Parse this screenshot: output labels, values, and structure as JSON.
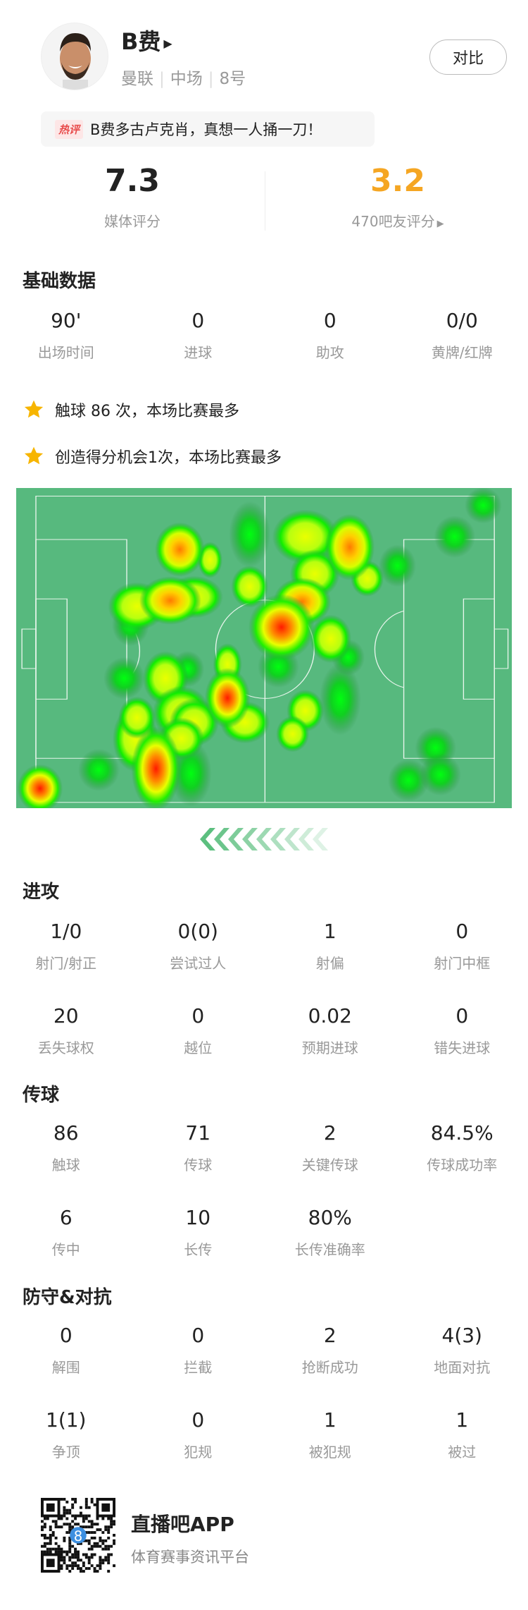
{
  "player": {
    "name": "B费",
    "team": "曼联",
    "position": "中场",
    "number": "8号",
    "compare_label": "对比"
  },
  "hot_comment": {
    "tag": "热评",
    "text": "B费多古卢克肖，真想一人捅一刀！"
  },
  "ratings": {
    "media": {
      "value": "7.3",
      "label": "媒体评分"
    },
    "fans": {
      "value": "3.2",
      "label": "470吧友评分",
      "color": "#f5a623"
    }
  },
  "basic": {
    "title": "基础数据",
    "items": [
      {
        "v": "90'",
        "l": "出场时间"
      },
      {
        "v": "0",
        "l": "进球"
      },
      {
        "v": "0",
        "l": "助攻"
      },
      {
        "v": "0/0",
        "l": "黄牌/红牌"
      }
    ]
  },
  "highlights": [
    "触球 86 次，本场比赛最多",
    "创造得分机会1次，本场比赛最多"
  ],
  "heatmap": {
    "pitch_color": "#57b97e",
    "attack_direction": "left"
  },
  "attack": {
    "title": "进攻",
    "items": [
      {
        "v": "1/0",
        "l": "射门/射正"
      },
      {
        "v": "0(0)",
        "l": "尝试过人"
      },
      {
        "v": "1",
        "l": "射偏"
      },
      {
        "v": "0",
        "l": "射门中框"
      },
      {
        "v": "20",
        "l": "丢失球权"
      },
      {
        "v": "0",
        "l": "越位"
      },
      {
        "v": "0.02",
        "l": "预期进球"
      },
      {
        "v": "0",
        "l": "错失进球"
      }
    ]
  },
  "passing": {
    "title": "传球",
    "items": [
      {
        "v": "86",
        "l": "触球"
      },
      {
        "v": "71",
        "l": "传球"
      },
      {
        "v": "2",
        "l": "关键传球"
      },
      {
        "v": "84.5%",
        "l": "传球成功率"
      },
      {
        "v": "6",
        "l": "传中"
      },
      {
        "v": "10",
        "l": "长传"
      },
      {
        "v": "80%",
        "l": "长传准确率"
      }
    ]
  },
  "defense": {
    "title": "防守&对抗",
    "items": [
      {
        "v": "0",
        "l": "解围"
      },
      {
        "v": "0",
        "l": "拦截"
      },
      {
        "v": "2",
        "l": "抢断成功"
      },
      {
        "v": "4(3)",
        "l": "地面对抗"
      },
      {
        "v": "1(1)",
        "l": "争顶"
      },
      {
        "v": "0",
        "l": "犯规"
      },
      {
        "v": "1",
        "l": "被犯规"
      },
      {
        "v": "1",
        "l": "被过"
      }
    ]
  },
  "footer": {
    "app": "直播吧APP",
    "tagline": "体育赛事资讯平台"
  }
}
